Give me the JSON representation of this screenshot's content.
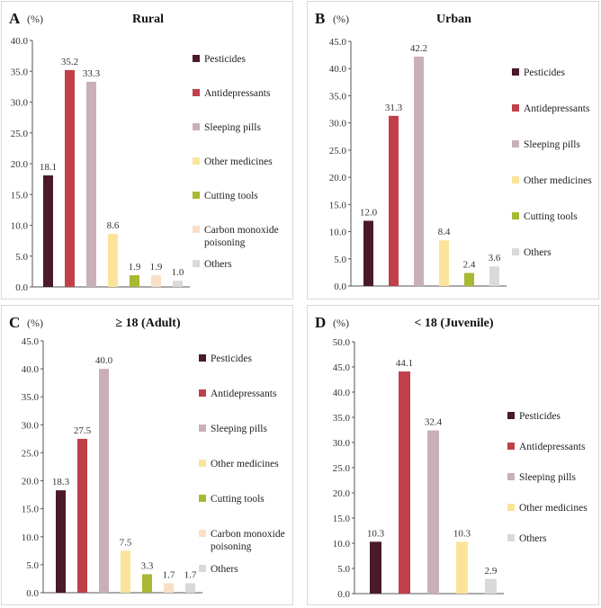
{
  "chart_data": [
    {
      "id": "pA",
      "panel": "A",
      "type": "bar",
      "title": "Rural",
      "unit": "(%)",
      "ylim": [
        0,
        40
      ],
      "yticks": [
        "0.0",
        "5.0",
        "10.0",
        "15.0",
        "20.0",
        "25.0",
        "30.0",
        "35.0",
        "40.0"
      ],
      "categories": [
        "Pesticides",
        "Antidepressants",
        "Sleeping pills",
        "Other medicines",
        "Cutting tools",
        "Carbon monoxide poisoning",
        "Others"
      ],
      "legend": [
        [
          "Pesticides"
        ],
        [
          "Antidepressants"
        ],
        [
          "Sleeping pills"
        ],
        [
          "Other medicines"
        ],
        [
          "Cutting tools"
        ],
        [
          "Carbon monoxide",
          "poisoning"
        ],
        [
          "Others"
        ]
      ],
      "values": [
        18.1,
        35.2,
        33.3,
        8.6,
        1.9,
        1.9,
        1.0
      ],
      "labels": [
        "18.1",
        "35.2",
        "33.3",
        "8.6",
        "1.9",
        "1.9",
        "1.0"
      ],
      "colors": [
        "#4a1a28",
        "#c0404a",
        "#c9b0b6",
        "#fbe49a",
        "#a8b832",
        "#f8dfc6",
        "#d9d9d9"
      ]
    },
    {
      "id": "pB",
      "panel": "B",
      "type": "bar",
      "title": "Urban",
      "unit": "(%)",
      "ylim": [
        0,
        45
      ],
      "yticks": [
        "0.0",
        "5.0",
        "10.0",
        "15.0",
        "20.0",
        "25.0",
        "30.0",
        "35.0",
        "40.0",
        "45.0"
      ],
      "categories": [
        "Pesticides",
        "Antidepressants",
        "Sleeping pills",
        "Other medicines",
        "Cutting tools",
        "Others"
      ],
      "legend": [
        [
          "Pesticides"
        ],
        [
          "Antidepressants"
        ],
        [
          "Sleeping pills"
        ],
        [
          "Other medicines"
        ],
        [
          "Cutting tools"
        ],
        [
          "Others"
        ]
      ],
      "values": [
        12.0,
        31.3,
        42.2,
        8.4,
        2.4,
        3.6
      ],
      "labels": [
        "12.0",
        "31.3",
        "42.2",
        "8.4",
        "2.4",
        "3.6"
      ],
      "colors": [
        "#4a1a28",
        "#c0404a",
        "#c9b0b6",
        "#fbe49a",
        "#a8b832",
        "#d9d9d9"
      ]
    },
    {
      "id": "pC",
      "panel": "C",
      "type": "bar",
      "title": "≥ 18 (Adult)",
      "unit": "(%)",
      "ylim": [
        0,
        45
      ],
      "yticks": [
        "0.0",
        "5.0",
        "10.0",
        "15.0",
        "20.0",
        "25.0",
        "30.0",
        "35.0",
        "40.0",
        "45.0"
      ],
      "categories": [
        "Pesticides",
        "Antidepressants",
        "Sleeping pills",
        "Other medicines",
        "Cutting tools",
        "Carbon monoxide poisoning",
        "Others"
      ],
      "legend": [
        [
          "Pesticides"
        ],
        [
          "Antidepressants"
        ],
        [
          "Sleeping pills"
        ],
        [
          "Other medicines"
        ],
        [
          "Cutting tools"
        ],
        [
          "Carbon monoxide",
          "poisoning"
        ],
        [
          "Others"
        ]
      ],
      "values": [
        18.3,
        27.5,
        40.0,
        7.5,
        3.3,
        1.7,
        1.7
      ],
      "labels": [
        "18.3",
        "27.5",
        "40.0",
        "7.5",
        "3.3",
        "1.7",
        "1.7"
      ],
      "colors": [
        "#4a1a28",
        "#c0404a",
        "#c9b0b6",
        "#fbe49a",
        "#a8b832",
        "#f8dfc6",
        "#d9d9d9"
      ]
    },
    {
      "id": "pD",
      "panel": "D",
      "type": "bar",
      "title": "< 18 (Juvenile)",
      "unit": "(%)",
      "ylim": [
        0,
        50
      ],
      "yticks": [
        "0.0",
        "5.0",
        "10.0",
        "15.0",
        "20.0",
        "25.0",
        "30.0",
        "35.0",
        "40.0",
        "45.0",
        "50.0"
      ],
      "categories": [
        "Pesticides",
        "Antidepressants",
        "Sleeping pills",
        "Other medicines",
        "Others"
      ],
      "legend": [
        [
          "Pesticides"
        ],
        [
          "Antidepressants"
        ],
        [
          "Sleeping pills"
        ],
        [
          "Other medicines"
        ],
        [
          "Others"
        ]
      ],
      "values": [
        10.3,
        44.1,
        32.4,
        10.3,
        2.9
      ],
      "labels": [
        "10.3",
        "44.1",
        "32.4",
        "10.3",
        "2.9"
      ],
      "colors": [
        "#4a1a28",
        "#c0404a",
        "#c9b0b6",
        "#fbe49a",
        "#d9d9d9"
      ]
    }
  ]
}
